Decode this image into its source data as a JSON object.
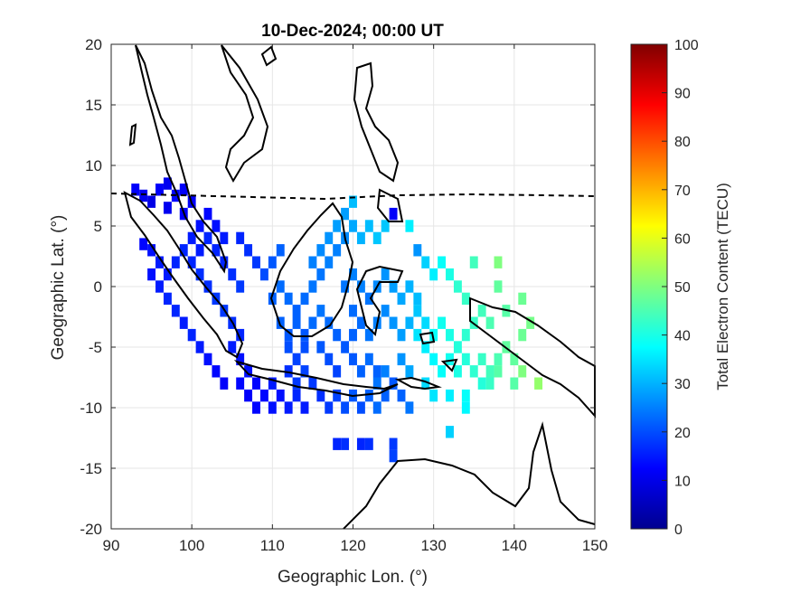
{
  "chart_data": {
    "type": "heatmap",
    "title": "10-Dec-2024; 00:00 UT",
    "xlabel": "Geographic Lon. (°)",
    "ylabel": "Geographic Lat. (°)",
    "xlim": [
      90,
      150
    ],
    "ylim": [
      -20,
      20
    ],
    "xticks": [
      "90",
      "100",
      "110",
      "120",
      "130",
      "140",
      "150"
    ],
    "yticks": [
      "-20",
      "-15",
      "-10",
      "-5",
      "0",
      "5",
      "10",
      "15",
      "20"
    ],
    "grid": true,
    "colorbar": {
      "label": "Total Electron Content (TECU)",
      "range": [
        0,
        100
      ],
      "ticks": [
        "0",
        "10",
        "20",
        "30",
        "40",
        "50",
        "60",
        "70",
        "80",
        "90",
        "100"
      ],
      "colormap": "jet"
    },
    "points": [
      [
        93,
        8,
        12
      ],
      [
        94,
        7.5,
        11
      ],
      [
        95,
        7,
        10
      ],
      [
        96,
        8,
        12
      ],
      [
        97,
        8.5,
        11
      ],
      [
        98,
        7.5,
        13
      ],
      [
        99,
        8,
        12
      ],
      [
        100,
        7,
        12
      ],
      [
        97,
        6.5,
        11
      ],
      [
        99,
        6,
        12
      ],
      [
        94,
        3.5,
        13
      ],
      [
        95,
        3,
        14
      ],
      [
        96,
        2,
        15
      ],
      [
        97,
        1,
        15
      ],
      [
        98,
        2,
        16
      ],
      [
        99,
        3,
        16
      ],
      [
        100,
        4,
        15
      ],
      [
        101,
        5,
        14
      ],
      [
        102,
        6,
        13
      ],
      [
        103,
        5,
        14
      ],
      [
        95,
        1,
        14
      ],
      [
        96,
        0,
        15
      ],
      [
        97,
        -1,
        16
      ],
      [
        98,
        -2,
        16
      ],
      [
        99,
        -3,
        15
      ],
      [
        100,
        -4,
        16
      ],
      [
        101,
        -5,
        15
      ],
      [
        102,
        -6,
        14
      ],
      [
        103,
        -7,
        13
      ],
      [
        104,
        -8,
        12
      ],
      [
        100,
        2,
        16
      ],
      [
        101,
        1,
        17
      ],
      [
        102,
        0,
        17
      ],
      [
        103,
        -1,
        18
      ],
      [
        104,
        -2,
        18
      ],
      [
        105,
        -3,
        17
      ],
      [
        106,
        -4,
        16
      ],
      [
        104,
        2,
        16
      ],
      [
        105,
        1,
        17
      ],
      [
        106,
        0,
        18
      ],
      [
        101,
        3,
        15
      ],
      [
        102,
        4,
        16
      ],
      [
        103,
        3,
        16
      ],
      [
        104,
        4,
        15
      ],
      [
        106,
        4,
        16
      ],
      [
        107,
        3,
        17
      ],
      [
        108,
        2,
        18
      ],
      [
        109,
        1,
        20
      ],
      [
        110,
        2,
        21
      ],
      [
        111,
        3,
        22
      ],
      [
        105,
        -5,
        15
      ],
      [
        106,
        -6,
        14
      ],
      [
        107,
        -7,
        14
      ],
      [
        108,
        -8,
        13
      ],
      [
        109,
        -9,
        13
      ],
      [
        110,
        -8,
        15
      ],
      [
        111,
        -9,
        14
      ],
      [
        112,
        -10,
        15
      ],
      [
        113,
        -9,
        16
      ],
      [
        114,
        -10,
        15
      ],
      [
        106,
        -8,
        13
      ],
      [
        107,
        -9,
        12
      ],
      [
        108,
        -10,
        13
      ],
      [
        110,
        -10,
        14
      ],
      [
        112,
        -7,
        17
      ],
      [
        113,
        -8,
        18
      ],
      [
        114,
        -7,
        19
      ],
      [
        115,
        -8,
        18
      ],
      [
        116,
        -9,
        17
      ],
      [
        117,
        -10,
        18
      ],
      [
        118,
        -9,
        19
      ],
      [
        119,
        -10,
        20
      ],
      [
        120,
        -9,
        21
      ],
      [
        121,
        -10,
        20
      ],
      [
        122,
        -9,
        22
      ],
      [
        123,
        -10,
        23
      ],
      [
        124,
        -9,
        22
      ],
      [
        125,
        -8,
        21
      ],
      [
        126,
        -9,
        22
      ],
      [
        127,
        -10,
        24
      ],
      [
        110,
        -1,
        22
      ],
      [
        111,
        0,
        23
      ],
      [
        112,
        -1,
        23
      ],
      [
        113,
        -2,
        22
      ],
      [
        114,
        -1,
        23
      ],
      [
        115,
        0,
        24
      ],
      [
        116,
        1,
        24
      ],
      [
        117,
        2,
        25
      ],
      [
        118,
        3,
        25
      ],
      [
        119,
        4,
        26
      ],
      [
        111,
        -3,
        22
      ],
      [
        112,
        -4,
        21
      ],
      [
        113,
        -3,
        22
      ],
      [
        114,
        -4,
        21
      ],
      [
        115,
        -3,
        23
      ],
      [
        116,
        -2,
        24
      ],
      [
        117,
        -3,
        23
      ],
      [
        118,
        -4,
        22
      ],
      [
        119,
        -5,
        21
      ],
      [
        120,
        -4,
        22
      ],
      [
        112,
        -5,
        20
      ],
      [
        113,
        -6,
        19
      ],
      [
        114,
        -5,
        20
      ],
      [
        116,
        -5,
        21
      ],
      [
        117,
        -6,
        20
      ],
      [
        118,
        -7,
        19
      ],
      [
        120,
        -6,
        21
      ],
      [
        121,
        -7,
        22
      ],
      [
        122,
        -6,
        23
      ],
      [
        123,
        -7,
        22
      ],
      [
        115,
        2,
        25
      ],
      [
        116,
        3,
        26
      ],
      [
        117,
        4,
        27
      ],
      [
        118,
        5,
        28
      ],
      [
        119,
        6,
        28
      ],
      [
        120,
        5,
        29
      ],
      [
        121,
        4,
        30
      ],
      [
        122,
        5,
        31
      ],
      [
        123,
        4,
        32
      ],
      [
        124,
        5,
        32
      ],
      [
        119,
        0,
        24
      ],
      [
        120,
        1,
        25
      ],
      [
        121,
        0,
        25
      ],
      [
        122,
        -1,
        24
      ],
      [
        123,
        0,
        26
      ],
      [
        124,
        1,
        27
      ],
      [
        125,
        0,
        28
      ],
      [
        126,
        -1,
        29
      ],
      [
        127,
        0,
        30
      ],
      [
        128,
        -1,
        31
      ],
      [
        120,
        -2,
        23
      ],
      [
        121,
        -3,
        23
      ],
      [
        122,
        -4,
        24
      ],
      [
        123,
        -3,
        25
      ],
      [
        124,
        -2,
        26
      ],
      [
        125,
        -3,
        27
      ],
      [
        126,
        -4,
        28
      ],
      [
        127,
        -3,
        30
      ],
      [
        128,
        -2,
        32
      ],
      [
        129,
        -3,
        34
      ],
      [
        120,
        7,
        31
      ],
      [
        125,
        6,
        12
      ],
      [
        127,
        5,
        36
      ],
      [
        128,
        3,
        27
      ],
      [
        129,
        2,
        33
      ],
      [
        130,
        1,
        36
      ],
      [
        131,
        2,
        38
      ],
      [
        132,
        1,
        40
      ],
      [
        133,
        0,
        42
      ],
      [
        134,
        -1,
        43
      ],
      [
        128,
        -4,
        35
      ],
      [
        129,
        -5,
        36
      ],
      [
        130,
        -4,
        38
      ],
      [
        131,
        -3,
        39
      ],
      [
        132,
        -4,
        40
      ],
      [
        133,
        -5,
        41
      ],
      [
        134,
        -4,
        42
      ],
      [
        135,
        -3,
        43
      ],
      [
        136,
        -2,
        44
      ],
      [
        137,
        -3,
        45
      ],
      [
        130,
        -6,
        37
      ],
      [
        131,
        -7,
        38
      ],
      [
        132,
        -6,
        39
      ],
      [
        133,
        -7,
        40
      ],
      [
        134,
        -6,
        41
      ],
      [
        135,
        -7,
        42
      ],
      [
        136,
        -6,
        43
      ],
      [
        137,
        -7,
        44
      ],
      [
        138,
        -6,
        45
      ],
      [
        139,
        -5,
        47
      ],
      [
        129,
        -8,
        34
      ],
      [
        130,
        -9,
        35
      ],
      [
        132,
        -9,
        36
      ],
      [
        134,
        -9,
        38
      ],
      [
        136,
        -8,
        41
      ],
      [
        137,
        -8,
        43
      ],
      [
        138,
        -7,
        46
      ],
      [
        140,
        -6,
        47
      ],
      [
        141,
        -4,
        48
      ],
      [
        142,
        -3,
        49
      ],
      [
        135,
        2,
        44
      ],
      [
        138,
        2,
        50
      ],
      [
        138,
        0,
        47
      ],
      [
        141,
        -1,
        48
      ],
      [
        139,
        -2,
        46
      ],
      [
        143,
        -8,
        52
      ],
      [
        141,
        -7,
        50
      ],
      [
        140,
        -8,
        46
      ],
      [
        134,
        -10,
        37
      ],
      [
        132,
        -12,
        33
      ],
      [
        118,
        -13,
        16
      ],
      [
        119,
        -13,
        17
      ],
      [
        121,
        -13,
        16
      ],
      [
        122,
        -13,
        17
      ],
      [
        125,
        -13,
        18
      ],
      [
        125,
        -14,
        19
      ],
      [
        123,
        -8,
        24
      ],
      [
        124,
        -7,
        25
      ],
      [
        126,
        -6,
        27
      ],
      [
        127,
        -7,
        29
      ]
    ]
  }
}
